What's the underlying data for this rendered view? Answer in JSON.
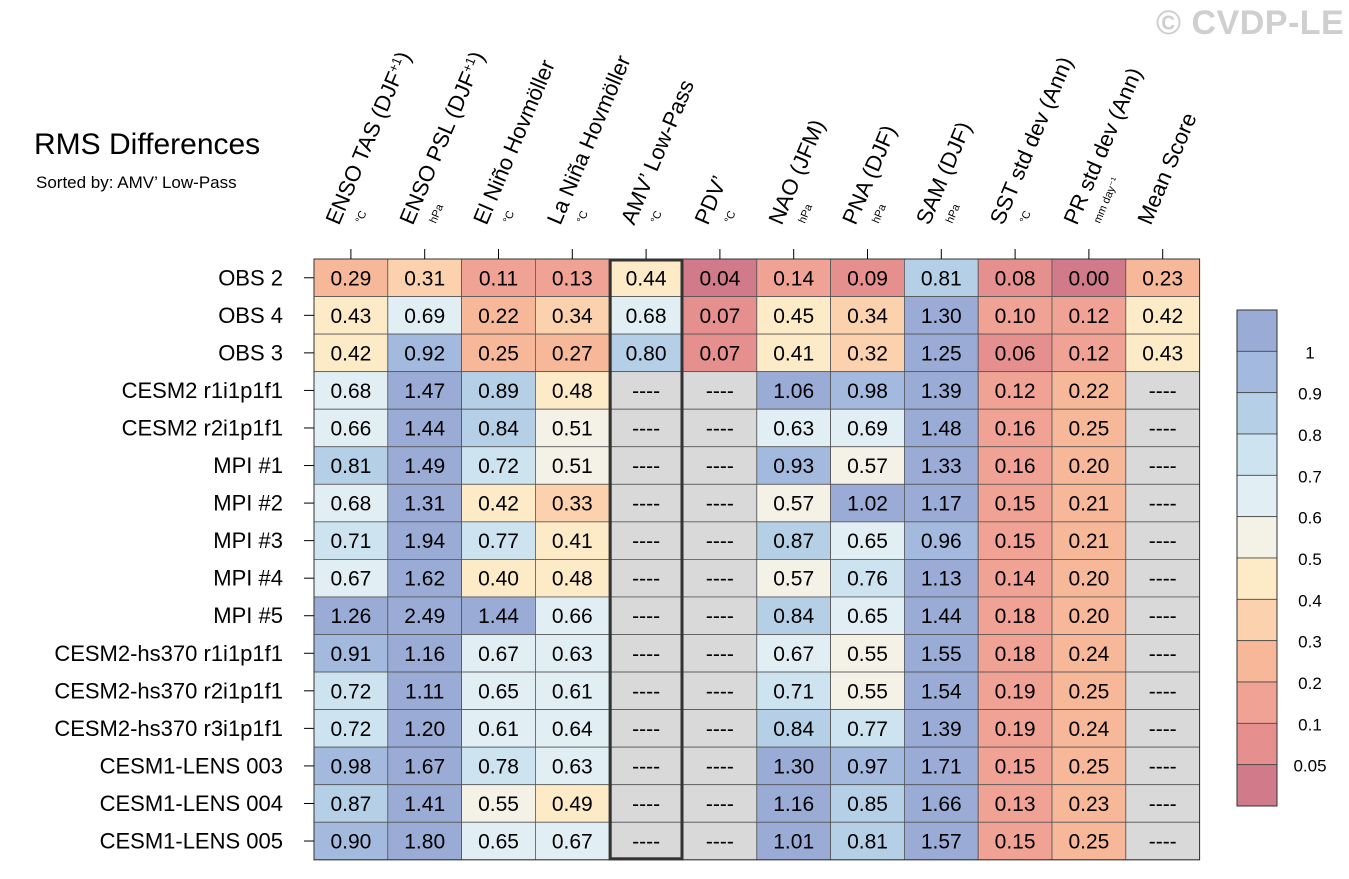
{
  "title": "RMS Differences",
  "subtitle": "Sorted by: AMV’ Low-Pass",
  "watermark": "© CVDP-LE",
  "chart_data": {
    "type": "heatmap",
    "columns": [
      {
        "label": "ENSO TAS (DJF",
        "sup": "+1",
        "close": ")",
        "unit": "°C"
      },
      {
        "label": "ENSO PSL (DJF",
        "sup": "+1",
        "close": ")",
        "unit": "hPa"
      },
      {
        "label": "El Niño Hovmöller",
        "sup": "",
        "close": "",
        "unit": "°C"
      },
      {
        "label": "La Niña Hovmöller",
        "sup": "",
        "close": "",
        "unit": "°C"
      },
      {
        "label": "AMV’ Low-Pass",
        "sup": "",
        "close": "",
        "unit": "°C"
      },
      {
        "label": "PDV’",
        "sup": "",
        "close": "",
        "unit": "°C"
      },
      {
        "label": "NAO (JFM)",
        "sup": "",
        "close": "",
        "unit": "hPa"
      },
      {
        "label": "PNA (DJF)",
        "sup": "",
        "close": "",
        "unit": "hPa"
      },
      {
        "label": "SAM (DJF)",
        "sup": "",
        "close": "",
        "unit": "hPa"
      },
      {
        "label": "SST std dev (Ann)",
        "sup": "",
        "close": "",
        "unit": "°C"
      },
      {
        "label": "PR std dev (Ann)",
        "sup": "",
        "close": "",
        "unit": "mm day⁻¹"
      },
      {
        "label": "Mean Score",
        "sup": "",
        "close": "",
        "unit": ""
      }
    ],
    "highlight_column": 4,
    "rows": [
      "OBS 2",
      "OBS 4",
      "OBS 3",
      "CESM2 r1i1p1f1",
      "CESM2 r2i1p1f1",
      "MPI #1",
      "MPI #2",
      "MPI #3",
      "MPI #4",
      "MPI #5",
      "CESM2-hs370 r1i1p1f1",
      "CESM2-hs370 r2i1p1f1",
      "CESM2-hs370 r3i1p1f1",
      "CESM1-LENS 003",
      "CESM1-LENS 004",
      "CESM1-LENS 005"
    ],
    "values": [
      [
        0.29,
        0.31,
        0.11,
        0.13,
        0.44,
        0.04,
        0.14,
        0.09,
        0.81,
        0.08,
        0.0,
        0.23
      ],
      [
        0.43,
        0.69,
        0.22,
        0.34,
        0.68,
        0.07,
        0.45,
        0.34,
        1.3,
        0.1,
        0.12,
        0.42
      ],
      [
        0.42,
        0.92,
        0.25,
        0.27,
        0.8,
        0.07,
        0.41,
        0.32,
        1.25,
        0.06,
        0.12,
        0.43
      ],
      [
        0.68,
        1.47,
        0.89,
        0.48,
        null,
        null,
        1.06,
        0.98,
        1.39,
        0.12,
        0.22,
        null
      ],
      [
        0.66,
        1.44,
        0.84,
        0.51,
        null,
        null,
        0.63,
        0.69,
        1.48,
        0.16,
        0.25,
        null
      ],
      [
        0.81,
        1.49,
        0.72,
        0.51,
        null,
        null,
        0.93,
        0.57,
        1.33,
        0.16,
        0.2,
        null
      ],
      [
        0.68,
        1.31,
        0.42,
        0.33,
        null,
        null,
        0.57,
        1.02,
        1.17,
        0.15,
        0.21,
        null
      ],
      [
        0.71,
        1.94,
        0.77,
        0.41,
        null,
        null,
        0.87,
        0.65,
        0.96,
        0.15,
        0.21,
        null
      ],
      [
        0.67,
        1.62,
        0.4,
        0.48,
        null,
        null,
        0.57,
        0.76,
        1.13,
        0.14,
        0.2,
        null
      ],
      [
        1.26,
        2.49,
        1.44,
        0.66,
        null,
        null,
        0.84,
        0.65,
        1.44,
        0.18,
        0.2,
        null
      ],
      [
        0.91,
        1.16,
        0.67,
        0.63,
        null,
        null,
        0.67,
        0.55,
        1.55,
        0.18,
        0.24,
        null
      ],
      [
        0.72,
        1.11,
        0.65,
        0.61,
        null,
        null,
        0.71,
        0.55,
        1.54,
        0.19,
        0.25,
        null
      ],
      [
        0.72,
        1.2,
        0.61,
        0.64,
        null,
        null,
        0.84,
        0.77,
        1.39,
        0.19,
        0.24,
        null
      ],
      [
        0.98,
        1.67,
        0.78,
        0.63,
        null,
        null,
        1.3,
        0.97,
        1.71,
        0.15,
        0.25,
        null
      ],
      [
        0.87,
        1.41,
        0.55,
        0.49,
        null,
        null,
        1.16,
        0.85,
        1.66,
        0.13,
        0.23,
        null
      ],
      [
        0.9,
        1.8,
        0.65,
        0.67,
        null,
        null,
        1.01,
        0.81,
        1.57,
        0.15,
        0.25,
        null
      ]
    ],
    "missing_text": "----",
    "colorbar": {
      "ticks": [
        "1",
        "0.9",
        "0.8",
        "0.7",
        "0.6",
        "0.5",
        "0.4",
        "0.3",
        "0.2",
        "0.1",
        "0.05"
      ],
      "levels": [
        0.05,
        0.1,
        0.2,
        0.3,
        0.4,
        0.5,
        0.6,
        0.7,
        0.8,
        0.9,
        1.0
      ],
      "colors": [
        "#d07a8a",
        "#e58f8f",
        "#f0a294",
        "#f7b899",
        "#fbd2ad",
        "#fdeac6",
        "#f4f2e6",
        "#e1eff5",
        "#cde3f0",
        "#b4cfe6",
        "#a3b9dd",
        "#9aabd6"
      ]
    },
    "missing_color": "#d9d9d9"
  }
}
